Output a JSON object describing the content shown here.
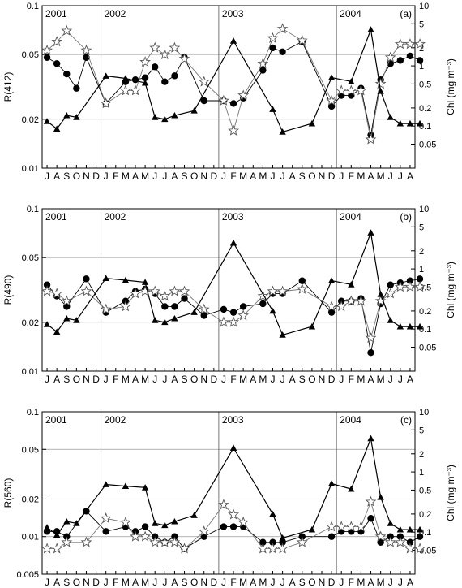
{
  "figure": {
    "months": [
      "J",
      "A",
      "S",
      "O",
      "N",
      "D",
      "J",
      "F",
      "M",
      "A",
      "M",
      "J",
      "J",
      "A",
      "S",
      "O",
      "N",
      "D",
      "J",
      "F",
      "M",
      "A",
      "M",
      "J",
      "J",
      "A",
      "S",
      "O",
      "N",
      "D",
      "J",
      "F",
      "M",
      "A",
      "M",
      "J",
      "J",
      "A"
    ],
    "years": [
      {
        "label": "2001",
        "start_index": 0
      },
      {
        "label": "2002",
        "start_index": 6
      },
      {
        "label": "2003",
        "start_index": 18
      },
      {
        "label": "2004",
        "start_index": 30
      }
    ],
    "year_boundaries": [
      5.5,
      17.5,
      29.5
    ],
    "right_axis": {
      "label": "Chl (mg m⁻³)",
      "range": [
        0.02,
        10
      ],
      "ticks": [
        0.05,
        0.1,
        0.2,
        0.5,
        1,
        2,
        5,
        10
      ],
      "tick_labels": [
        "0.05",
        "0.1",
        "0.2",
        "0.5",
        "1",
        "2",
        "5",
        "10"
      ]
    }
  },
  "chart_data": [
    {
      "type": "scatter",
      "panel": "(a)",
      "ylabel": "R(412)",
      "yscale": "log",
      "ylim": [
        0.01,
        0.1
      ],
      "yticks": [
        0.01,
        0.02,
        0.05,
        0.1
      ],
      "ytick_labels": [
        "0.01",
        "0.02",
        "0.05",
        "0.1"
      ],
      "series": [
        {
          "marker": "filled-circle",
          "axis": "left",
          "points": [
            [
              0,
              0.048
            ],
            [
              1,
              0.044
            ],
            [
              2,
              0.038
            ],
            [
              3,
              0.031
            ],
            [
              4,
              0.048
            ],
            [
              6,
              0.025
            ],
            [
              8,
              0.034
            ],
            [
              9,
              0.035
            ],
            [
              10,
              0.036
            ],
            [
              11,
              0.042
            ],
            [
              12,
              0.034
            ],
            [
              13,
              0.037
            ],
            [
              14,
              0.048
            ],
            [
              16,
              0.026
            ],
            [
              18,
              0.026
            ],
            [
              19,
              0.025
            ],
            [
              20,
              0.027
            ],
            [
              22,
              0.04
            ],
            [
              23,
              0.055
            ],
            [
              24,
              0.052
            ],
            [
              26,
              0.06
            ],
            [
              29,
              0.024
            ],
            [
              30,
              0.028
            ],
            [
              31,
              0.028
            ],
            [
              32,
              0.031
            ],
            [
              33,
              0.016
            ],
            [
              34,
              0.035
            ],
            [
              35,
              0.044
            ],
            [
              36,
              0.046
            ],
            [
              37,
              0.049
            ],
            [
              38,
              0.046
            ]
          ]
        },
        {
          "marker": "star",
          "axis": "left",
          "points": [
            [
              0,
              0.053
            ],
            [
              1,
              0.06
            ],
            [
              2,
              0.07
            ],
            [
              4,
              0.053
            ],
            [
              6,
              0.025
            ],
            [
              8,
              0.03
            ],
            [
              9,
              0.03
            ],
            [
              10,
              0.045
            ],
            [
              11,
              0.055
            ],
            [
              12,
              0.05
            ],
            [
              13,
              0.055
            ],
            [
              14,
              0.047
            ],
            [
              16,
              0.034
            ],
            [
              18,
              0.026
            ],
            [
              19,
              0.017
            ],
            [
              20,
              0.028
            ],
            [
              22,
              0.044
            ],
            [
              23,
              0.063
            ],
            [
              24,
              0.072
            ],
            [
              26,
              0.061
            ],
            [
              29,
              0.026
            ],
            [
              30,
              0.03
            ],
            [
              31,
              0.03
            ],
            [
              32,
              0.03
            ],
            [
              33,
              0.015
            ],
            [
              34,
              0.033
            ],
            [
              35,
              0.048
            ],
            [
              36,
              0.058
            ],
            [
              37,
              0.058
            ],
            [
              38,
              0.058
            ]
          ]
        },
        {
          "marker": "filled-triangle",
          "axis": "right",
          "points": [
            [
              0,
              0.12
            ],
            [
              1,
              0.09
            ],
            [
              2,
              0.15
            ],
            [
              3,
              0.14
            ],
            [
              6,
              0.68
            ],
            [
              8,
              0.62
            ],
            [
              10,
              0.52
            ],
            [
              11,
              0.14
            ],
            [
              12,
              0.13
            ],
            [
              13,
              0.15
            ],
            [
              15,
              0.18
            ],
            [
              19,
              2.6
            ],
            [
              23,
              0.19
            ],
            [
              24,
              0.08
            ],
            [
              27,
              0.11
            ],
            [
              29,
              0.64
            ],
            [
              31,
              0.55
            ],
            [
              33,
              4.0
            ],
            [
              34,
              0.38
            ],
            [
              35,
              0.14
            ],
            [
              36,
              0.11
            ],
            [
              37,
              0.11
            ],
            [
              38,
              0.11
            ]
          ]
        }
      ]
    },
    {
      "type": "scatter",
      "panel": "(b)",
      "ylabel": "R(490)",
      "yscale": "log",
      "ylim": [
        0.01,
        0.1
      ],
      "yticks": [
        0.01,
        0.02,
        0.05,
        0.1
      ],
      "ytick_labels": [
        "0.01",
        "0.02",
        "0.05",
        "0.1"
      ],
      "series": [
        {
          "marker": "filled-circle",
          "axis": "left",
          "points": [
            [
              0,
              0.034
            ],
            [
              1,
              0.029
            ],
            [
              2,
              0.025
            ],
            [
              4,
              0.037
            ],
            [
              6,
              0.023
            ],
            [
              8,
              0.027
            ],
            [
              9,
              0.031
            ],
            [
              10,
              0.032
            ],
            [
              11,
              0.03
            ],
            [
              12,
              0.025
            ],
            [
              13,
              0.025
            ],
            [
              14,
              0.028
            ],
            [
              16,
              0.022
            ],
            [
              18,
              0.024
            ],
            [
              19,
              0.023
            ],
            [
              20,
              0.025
            ],
            [
              22,
              0.026
            ],
            [
              23,
              0.03
            ],
            [
              24,
              0.03
            ],
            [
              26,
              0.036
            ],
            [
              29,
              0.023
            ],
            [
              30,
              0.027
            ],
            [
              31,
              0.027
            ],
            [
              32,
              0.028
            ],
            [
              33,
              0.013
            ],
            [
              34,
              0.026
            ],
            [
              35,
              0.034
            ],
            [
              36,
              0.035
            ],
            [
              37,
              0.036
            ],
            [
              38,
              0.037
            ]
          ]
        },
        {
          "marker": "star",
          "axis": "left",
          "points": [
            [
              0,
              0.031
            ],
            [
              1,
              0.03
            ],
            [
              2,
              0.027
            ],
            [
              4,
              0.031
            ],
            [
              6,
              0.024
            ],
            [
              8,
              0.025
            ],
            [
              9,
              0.03
            ],
            [
              10,
              0.031
            ],
            [
              11,
              0.031
            ],
            [
              12,
              0.029
            ],
            [
              13,
              0.031
            ],
            [
              14,
              0.031
            ],
            [
              16,
              0.024
            ],
            [
              18,
              0.02
            ],
            [
              19,
              0.02
            ],
            [
              20,
              0.022
            ],
            [
              22,
              0.029
            ],
            [
              23,
              0.031
            ],
            [
              24,
              0.031
            ],
            [
              26,
              0.032
            ],
            [
              29,
              0.025
            ],
            [
              30,
              0.025
            ],
            [
              31,
              0.027
            ],
            [
              32,
              0.027
            ],
            [
              33,
              0.016
            ],
            [
              34,
              0.027
            ],
            [
              35,
              0.03
            ],
            [
              36,
              0.033
            ],
            [
              37,
              0.033
            ],
            [
              38,
              0.033
            ]
          ]
        },
        {
          "marker": "filled-triangle",
          "axis": "right",
          "points": [
            [
              0,
              0.12
            ],
            [
              1,
              0.09
            ],
            [
              2,
              0.15
            ],
            [
              3,
              0.14
            ],
            [
              6,
              0.7
            ],
            [
              8,
              0.65
            ],
            [
              10,
              0.6
            ],
            [
              11,
              0.14
            ],
            [
              12,
              0.13
            ],
            [
              13,
              0.15
            ],
            [
              15,
              0.19
            ],
            [
              19,
              2.7
            ],
            [
              23,
              0.2
            ],
            [
              24,
              0.08
            ],
            [
              27,
              0.11
            ],
            [
              29,
              0.64
            ],
            [
              31,
              0.55
            ],
            [
              33,
              4.0
            ],
            [
              34,
              0.38
            ],
            [
              35,
              0.14
            ],
            [
              36,
              0.11
            ],
            [
              37,
              0.11
            ],
            [
              38,
              0.11
            ]
          ]
        }
      ]
    },
    {
      "type": "scatter",
      "panel": "(c)",
      "ylabel": "R(560)",
      "yscale": "log",
      "ylim": [
        0.005,
        0.1
      ],
      "yticks": [
        0.005,
        0.01,
        0.02,
        0.05,
        0.1
      ],
      "ytick_labels": [
        "0.005",
        "0.01",
        "0.02",
        "0.05",
        "0.1"
      ],
      "series": [
        {
          "marker": "filled-circle",
          "axis": "left",
          "points": [
            [
              0,
              0.011
            ],
            [
              1,
              0.011
            ],
            [
              2,
              0.01
            ],
            [
              4,
              0.016
            ],
            [
              6,
              0.011
            ],
            [
              8,
              0.012
            ],
            [
              9,
              0.011
            ],
            [
              10,
              0.012
            ],
            [
              11,
              0.01
            ],
            [
              12,
              0.009
            ],
            [
              13,
              0.01
            ],
            [
              14,
              0.008
            ],
            [
              16,
              0.01
            ],
            [
              18,
              0.012
            ],
            [
              19,
              0.012
            ],
            [
              20,
              0.012
            ],
            [
              22,
              0.009
            ],
            [
              23,
              0.009
            ],
            [
              24,
              0.009
            ],
            [
              26,
              0.01
            ],
            [
              29,
              0.01
            ],
            [
              30,
              0.011
            ],
            [
              31,
              0.011
            ],
            [
              32,
              0.011
            ],
            [
              33,
              0.014
            ],
            [
              34,
              0.009
            ],
            [
              35,
              0.01
            ],
            [
              36,
              0.01
            ],
            [
              37,
              0.009
            ],
            [
              38,
              0.01
            ]
          ]
        },
        {
          "marker": "star",
          "axis": "left",
          "points": [
            [
              0,
              0.008
            ],
            [
              1,
              0.008
            ],
            [
              2,
              0.009
            ],
            [
              4,
              0.009
            ],
            [
              6,
              0.014
            ],
            [
              8,
              0.013
            ],
            [
              9,
              0.01
            ],
            [
              10,
              0.01
            ],
            [
              11,
              0.009
            ],
            [
              12,
              0.009
            ],
            [
              13,
              0.009
            ],
            [
              14,
              0.008
            ],
            [
              16,
              0.011
            ],
            [
              18,
              0.018
            ],
            [
              19,
              0.015
            ],
            [
              20,
              0.013
            ],
            [
              22,
              0.008
            ],
            [
              23,
              0.008
            ],
            [
              24,
              0.008
            ],
            [
              26,
              0.009
            ],
            [
              29,
              0.012
            ],
            [
              30,
              0.012
            ],
            [
              31,
              0.012
            ],
            [
              32,
              0.012
            ],
            [
              33,
              0.019
            ],
            [
              34,
              0.01
            ],
            [
              35,
              0.009
            ],
            [
              36,
              0.009
            ],
            [
              37,
              0.008
            ],
            [
              38,
              0.008
            ]
          ]
        },
        {
          "marker": "filled-triangle",
          "axis": "right",
          "points": [
            [
              0,
              0.12
            ],
            [
              1,
              0.09
            ],
            [
              2,
              0.15
            ],
            [
              3,
              0.14
            ],
            [
              6,
              0.62
            ],
            [
              8,
              0.58
            ],
            [
              10,
              0.55
            ],
            [
              11,
              0.14
            ],
            [
              12,
              0.13
            ],
            [
              13,
              0.15
            ],
            [
              15,
              0.19
            ],
            [
              19,
              2.5
            ],
            [
              23,
              0.2
            ],
            [
              24,
              0.08
            ],
            [
              27,
              0.11
            ],
            [
              29,
              0.64
            ],
            [
              31,
              0.52
            ],
            [
              33,
              3.6
            ],
            [
              34,
              0.38
            ],
            [
              35,
              0.14
            ],
            [
              36,
              0.11
            ],
            [
              37,
              0.11
            ],
            [
              38,
              0.11
            ]
          ]
        }
      ]
    }
  ]
}
